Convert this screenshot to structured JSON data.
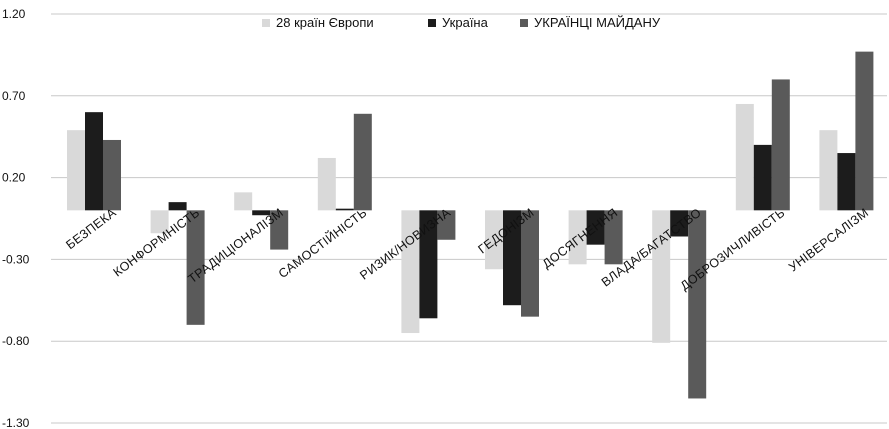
{
  "chart_data": {
    "type": "bar",
    "title": "",
    "xlabel": "",
    "ylabel": "",
    "ylim": [
      -1.3,
      1.2
    ],
    "yticks": [
      1.2,
      0.7,
      0.2,
      -0.3,
      -0.8,
      -1.3
    ],
    "ytick_labels": [
      "1.20",
      "0.70",
      "0.20",
      "-0.30",
      "-0.80",
      "-1.30"
    ],
    "grid": "horizontal",
    "legend_position": "top",
    "categories": [
      "БЕЗПЕКА",
      "КОНФОРМНІСТЬ",
      "ТРАДИЦІОНАЛІЗМ",
      "САМОСТІЙНІСТЬ",
      "РИЗИК/НОВИЗНА",
      "ГЕДОНІЗМ",
      "ДОСЯГНЕННЯ",
      "ВЛАДА/БАГАТСТВО",
      "ДОБРОЗИЧЛИВІСТЬ",
      "УНІВЕРСАЛІЗМ"
    ],
    "series": [
      {
        "name": "28 країн Європи",
        "color": "#d9d9d9",
        "values": [
          0.49,
          -0.14,
          0.11,
          0.32,
          -0.75,
          -0.36,
          -0.33,
          -0.81,
          0.65,
          0.49
        ]
      },
      {
        "name": "Україна",
        "color": "#1c1c1c",
        "values": [
          0.6,
          0.05,
          -0.03,
          0.01,
          -0.66,
          -0.58,
          -0.21,
          -0.16,
          0.4,
          0.35
        ]
      },
      {
        "name": "УКРАЇНЦІ МАЙДАНУ",
        "color": "#5a5a5a",
        "values": [
          0.43,
          -0.7,
          -0.24,
          0.59,
          -0.18,
          -0.65,
          -0.33,
          -1.15,
          0.8,
          0.97
        ]
      }
    ]
  }
}
